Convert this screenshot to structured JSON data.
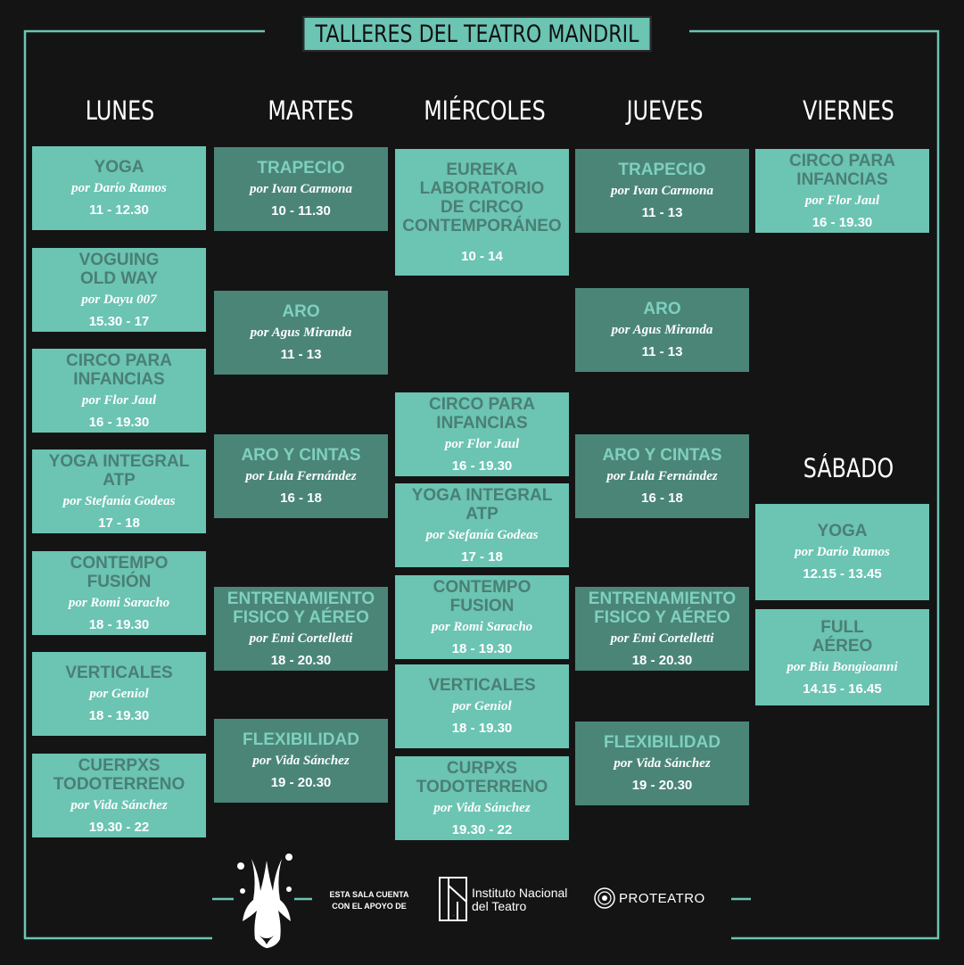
{
  "title": "TALLERES DEL TEATRO MANDRIL",
  "days": [
    "LUNES",
    "MARTES",
    "MIÉRCOLES",
    "JUEVES",
    "VIERNES",
    "SÁBADO"
  ],
  "lunes": [
    {
      "name": "YOGA",
      "by": "por Darío Ramos",
      "time": "11 - 12.30"
    },
    {
      "name": "VOGUING\nOLD WAY",
      "by": "por Dayu 007",
      "time": "15.30 - 17"
    },
    {
      "name": "CIRCO PARA\nINFANCIAS",
      "by": "por Flor Jaul",
      "time": "16 - 19.30"
    },
    {
      "name": "YOGA INTEGRAL\nATP",
      "by": "por Stefanía Godeas",
      "time": "17 - 18"
    },
    {
      "name": "CONTEMPO\nFUSIÓN",
      "by": "por Romi Saracho",
      "time": "18 - 19.30"
    },
    {
      "name": "VERTICALES",
      "by": "por Geniol",
      "time": "18 - 19.30"
    },
    {
      "name": "CUERPXS\nTODOTERRENO",
      "by": "por Vida Sánchez",
      "time": "19.30 - 22"
    }
  ],
  "martes": [
    {
      "name": "TRAPECIO",
      "by": "por Ivan Carmona",
      "time": "10 - 11.30"
    },
    {
      "name": "ARO",
      "by": "por Agus Miranda",
      "time": "11 - 13"
    },
    {
      "name": "ARO Y CINTAS",
      "by": "por Lula Fernández",
      "time": "16 - 18"
    },
    {
      "name": "ENTRENAMIENTO\nFISICO Y AÉREO",
      "by": "por Emi Cortelletti",
      "time": "18 - 20.30"
    },
    {
      "name": "FLEXIBILIDAD",
      "by": "por Vida Sánchez",
      "time": "19 - 20.30"
    }
  ],
  "miercoles": [
    {
      "name": "EUREKA\nLABORATORIO\nDE CIRCO\nCONTEMPORÁNEO",
      "by": "",
      "time": "10 - 14"
    },
    {
      "name": "CIRCO PARA\nINFANCIAS",
      "by": "por Flor Jaul",
      "time": "16 - 19.30"
    },
    {
      "name": "YOGA INTEGRAL\nATP",
      "by": "por Stefanía Godeas",
      "time": "17 - 18"
    },
    {
      "name": "CONTEMPO\nFUSION",
      "by": "por Romi Saracho",
      "time": "18 - 19.30"
    },
    {
      "name": "VERTICALES",
      "by": "por Geniol",
      "time": "18 - 19.30"
    },
    {
      "name": "CURPXS\nTODOTERRENO",
      "by": "por Vida Sánchez",
      "time": "19.30 - 22"
    }
  ],
  "jueves": [
    {
      "name": "TRAPECIO",
      "by": "por Ivan Carmona",
      "time": "11 - 13"
    },
    {
      "name": "ARO",
      "by": "por Agus Miranda",
      "time": "11 - 13"
    },
    {
      "name": "ARO Y CINTAS",
      "by": "por Lula Fernández",
      "time": "16 - 18"
    },
    {
      "name": "ENTRENAMIENTO\nFISICO Y AÉREO",
      "by": "por Emi Cortelletti",
      "time": "18 - 20.30"
    },
    {
      "name": "FLEXIBILIDAD",
      "by": "por Vida Sánchez",
      "time": "19 - 20.30"
    }
  ],
  "viernes": [
    {
      "name": "CIRCO PARA\nINFANCIAS",
      "by": "por Flor Jaul",
      "time": "16 - 19.30"
    }
  ],
  "sabado": [
    {
      "name": "YOGA",
      "by": "por Darío Ramos",
      "time": "12.15 - 13.45"
    },
    {
      "name": "FULL\nAÉREO",
      "by": "por Biu Bongioanni",
      "time": "14.15 - 16.45"
    }
  ],
  "footer": {
    "support": "ESTA SALA CUENTA CON EL APOYO DE",
    "institute": "Instituto Nacional\ndel Teatro",
    "institute_mark": "INT",
    "proteatro": "PROTEATRO"
  },
  "colors": {
    "accent": "#6cc4b3",
    "accent_dark": "#4a8578",
    "background": "#141414"
  }
}
